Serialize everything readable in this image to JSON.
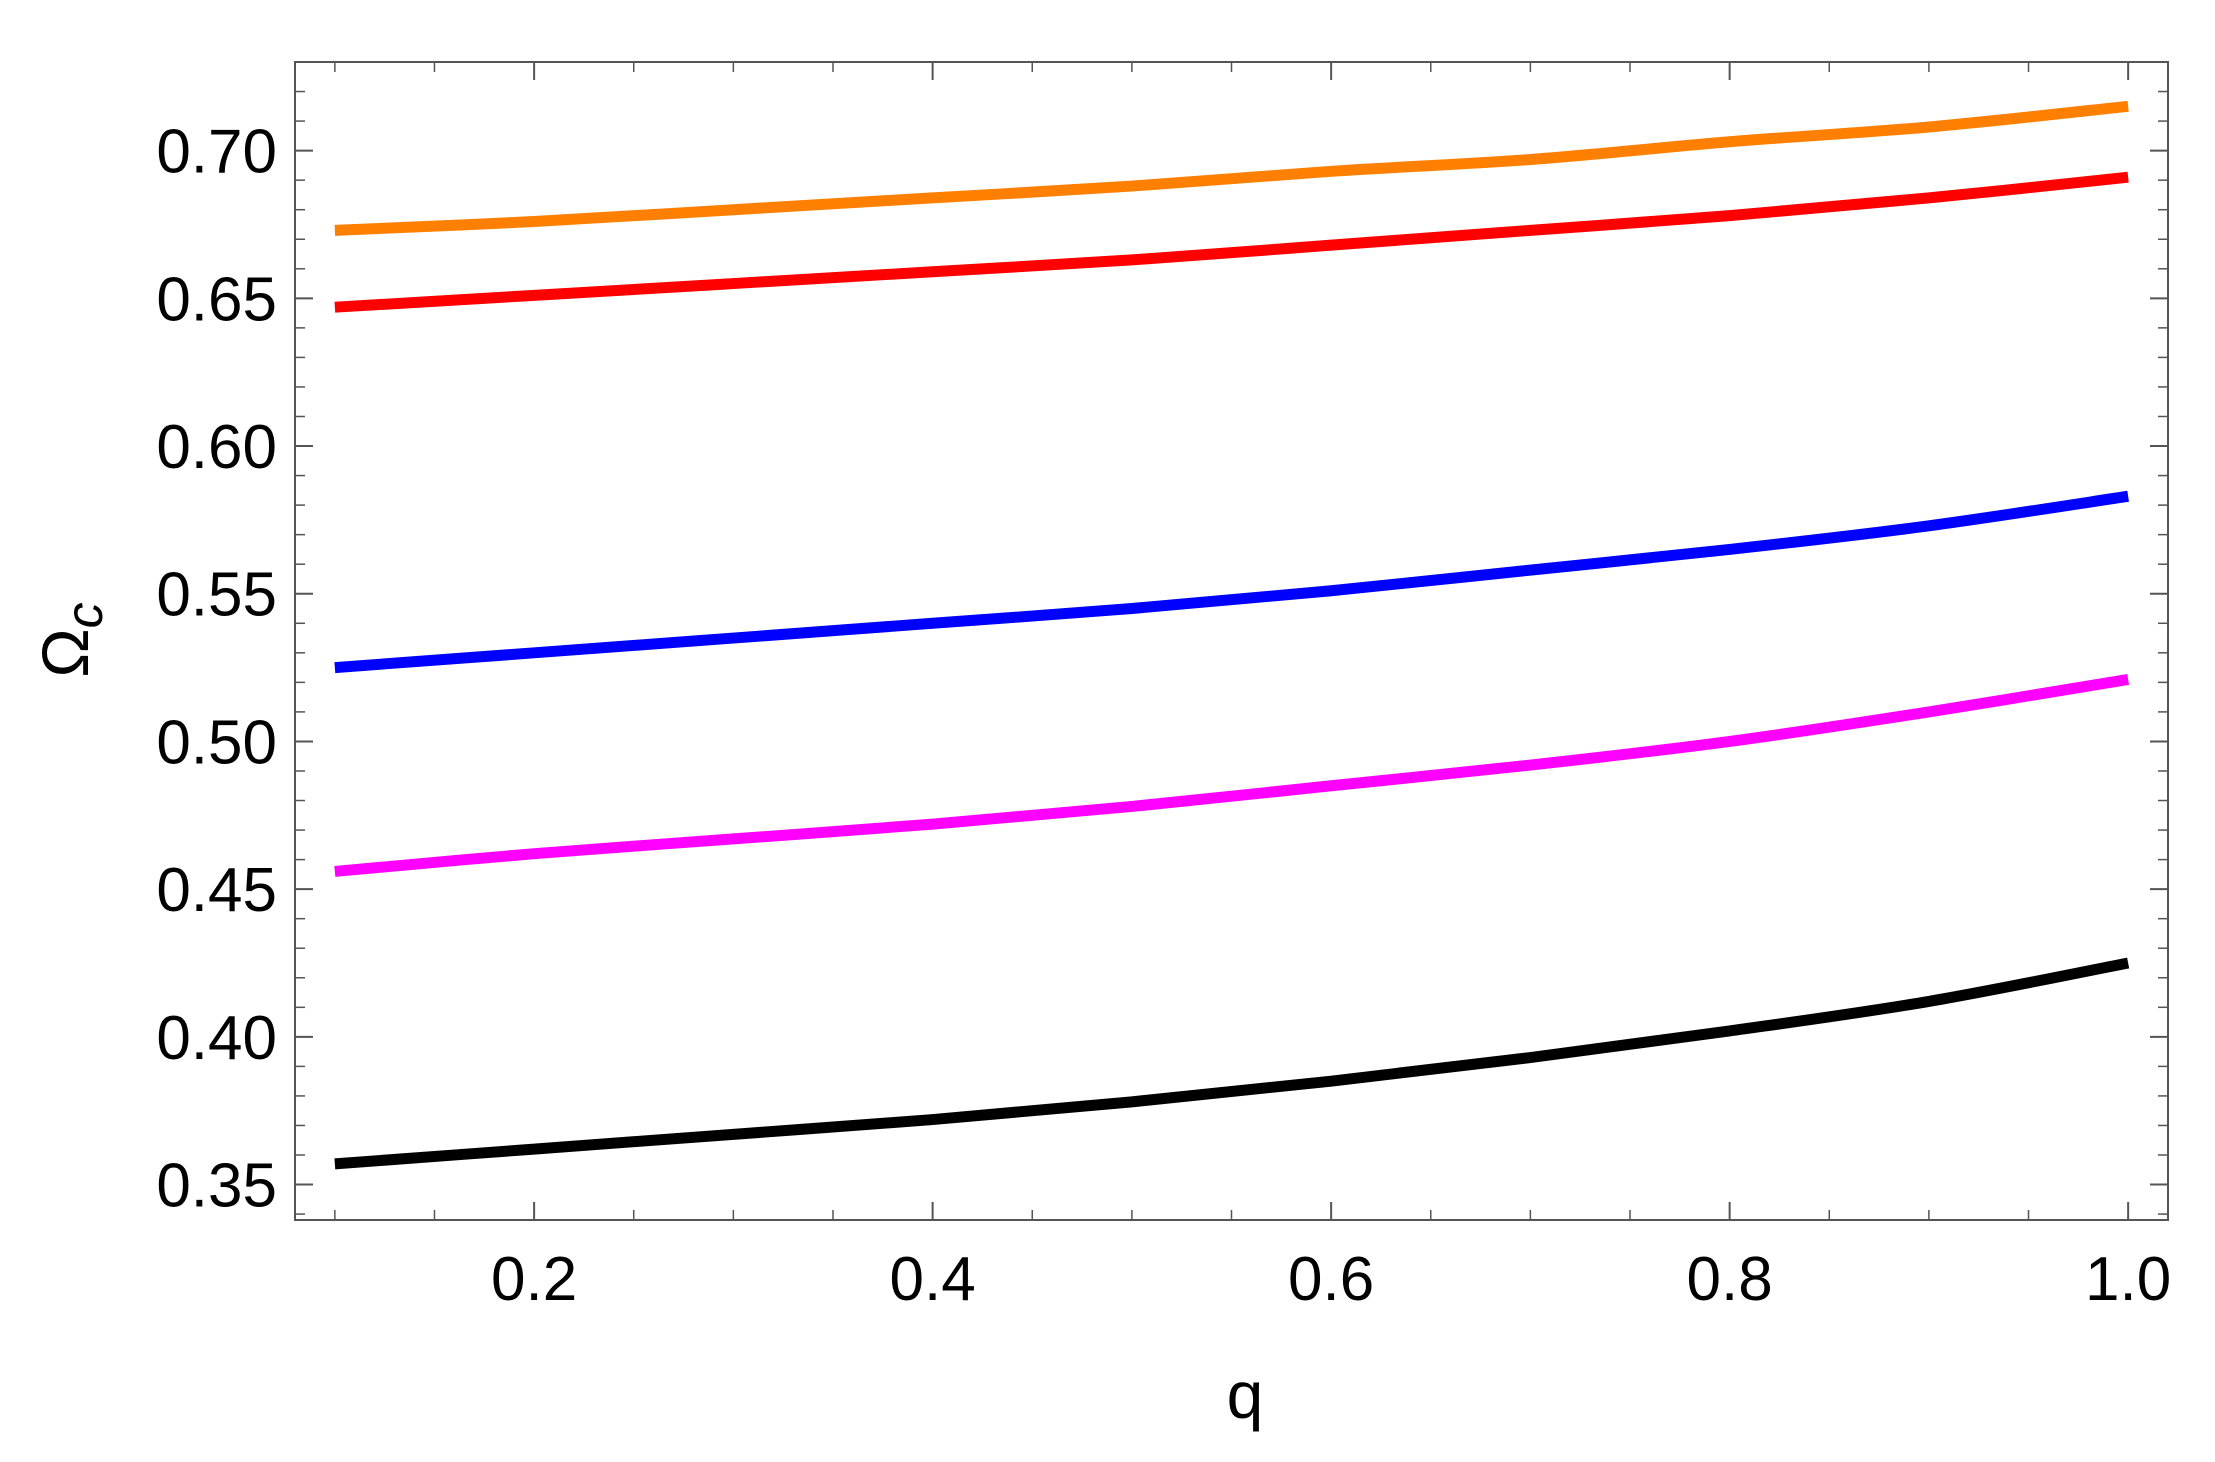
{
  "chart_data": {
    "type": "line",
    "xlabel": "q",
    "ylabel": "Ω",
    "ylabel_subscript": "c",
    "xlim": [
      0.08,
      1.02
    ],
    "ylim": [
      0.338,
      0.73
    ],
    "x_ticks": [
      0.2,
      0.4,
      0.6,
      0.8,
      1.0
    ],
    "x_tick_labels": [
      "0.2",
      "0.4",
      "0.6",
      "0.8",
      "1.0"
    ],
    "y_ticks": [
      0.35,
      0.4,
      0.45,
      0.5,
      0.55,
      0.6,
      0.65,
      0.7
    ],
    "y_tick_labels": [
      "0.35",
      "0.40",
      "0.45",
      "0.50",
      "0.55",
      "0.60",
      "0.65",
      "0.70"
    ],
    "grid": false,
    "legend": "none",
    "x": [
      0.1,
      0.2,
      0.3,
      0.4,
      0.5,
      0.6,
      0.7,
      0.8,
      0.9,
      1.0
    ],
    "series": [
      {
        "color": "#ff7f00",
        "values": [
          0.673,
          0.676,
          0.68,
          0.684,
          0.688,
          0.693,
          0.697,
          0.703,
          0.708,
          0.715
        ]
      },
      {
        "color": "#ff0000",
        "values": [
          0.647,
          0.651,
          0.655,
          0.659,
          0.663,
          0.668,
          0.673,
          0.678,
          0.684,
          0.691
        ]
      },
      {
        "color": "#0000ff",
        "values": [
          0.525,
          0.53,
          0.535,
          0.54,
          0.545,
          0.551,
          0.558,
          0.565,
          0.573,
          0.583
        ]
      },
      {
        "color": "#ff00ff",
        "values": [
          0.456,
          0.462,
          0.467,
          0.472,
          0.478,
          0.485,
          0.492,
          0.5,
          0.51,
          0.521
        ]
      },
      {
        "color": "#000000",
        "values": [
          0.357,
          0.362,
          0.367,
          0.372,
          0.378,
          0.385,
          0.393,
          0.402,
          0.412,
          0.425
        ]
      }
    ]
  }
}
